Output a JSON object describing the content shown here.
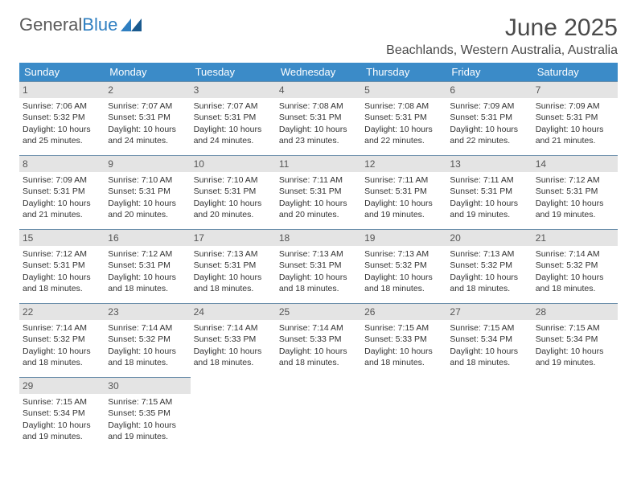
{
  "logo": {
    "text1": "General",
    "text2": "Blue"
  },
  "title": "June 2025",
  "location": "Beachlands, Western Australia, Australia",
  "colors": {
    "header_bg": "#3b8bc8",
    "header_text": "#ffffff",
    "daynum_bg": "#e4e4e4",
    "daynum_border": "#6c8fab",
    "text": "#333333",
    "title_text": "#4a4a4a"
  },
  "weekdays": [
    "Sunday",
    "Monday",
    "Tuesday",
    "Wednesday",
    "Thursday",
    "Friday",
    "Saturday"
  ],
  "days": [
    {
      "n": 1,
      "sunrise": "7:06 AM",
      "sunset": "5:32 PM",
      "dl_h": 10,
      "dl_m": 25
    },
    {
      "n": 2,
      "sunrise": "7:07 AM",
      "sunset": "5:31 PM",
      "dl_h": 10,
      "dl_m": 24
    },
    {
      "n": 3,
      "sunrise": "7:07 AM",
      "sunset": "5:31 PM",
      "dl_h": 10,
      "dl_m": 24
    },
    {
      "n": 4,
      "sunrise": "7:08 AM",
      "sunset": "5:31 PM",
      "dl_h": 10,
      "dl_m": 23
    },
    {
      "n": 5,
      "sunrise": "7:08 AM",
      "sunset": "5:31 PM",
      "dl_h": 10,
      "dl_m": 22
    },
    {
      "n": 6,
      "sunrise": "7:09 AM",
      "sunset": "5:31 PM",
      "dl_h": 10,
      "dl_m": 22
    },
    {
      "n": 7,
      "sunrise": "7:09 AM",
      "sunset": "5:31 PM",
      "dl_h": 10,
      "dl_m": 21
    },
    {
      "n": 8,
      "sunrise": "7:09 AM",
      "sunset": "5:31 PM",
      "dl_h": 10,
      "dl_m": 21
    },
    {
      "n": 9,
      "sunrise": "7:10 AM",
      "sunset": "5:31 PM",
      "dl_h": 10,
      "dl_m": 20
    },
    {
      "n": 10,
      "sunrise": "7:10 AM",
      "sunset": "5:31 PM",
      "dl_h": 10,
      "dl_m": 20
    },
    {
      "n": 11,
      "sunrise": "7:11 AM",
      "sunset": "5:31 PM",
      "dl_h": 10,
      "dl_m": 20
    },
    {
      "n": 12,
      "sunrise": "7:11 AM",
      "sunset": "5:31 PM",
      "dl_h": 10,
      "dl_m": 19
    },
    {
      "n": 13,
      "sunrise": "7:11 AM",
      "sunset": "5:31 PM",
      "dl_h": 10,
      "dl_m": 19
    },
    {
      "n": 14,
      "sunrise": "7:12 AM",
      "sunset": "5:31 PM",
      "dl_h": 10,
      "dl_m": 19
    },
    {
      "n": 15,
      "sunrise": "7:12 AM",
      "sunset": "5:31 PM",
      "dl_h": 10,
      "dl_m": 18
    },
    {
      "n": 16,
      "sunrise": "7:12 AM",
      "sunset": "5:31 PM",
      "dl_h": 10,
      "dl_m": 18
    },
    {
      "n": 17,
      "sunrise": "7:13 AM",
      "sunset": "5:31 PM",
      "dl_h": 10,
      "dl_m": 18
    },
    {
      "n": 18,
      "sunrise": "7:13 AM",
      "sunset": "5:31 PM",
      "dl_h": 10,
      "dl_m": 18
    },
    {
      "n": 19,
      "sunrise": "7:13 AM",
      "sunset": "5:32 PM",
      "dl_h": 10,
      "dl_m": 18
    },
    {
      "n": 20,
      "sunrise": "7:13 AM",
      "sunset": "5:32 PM",
      "dl_h": 10,
      "dl_m": 18
    },
    {
      "n": 21,
      "sunrise": "7:14 AM",
      "sunset": "5:32 PM",
      "dl_h": 10,
      "dl_m": 18
    },
    {
      "n": 22,
      "sunrise": "7:14 AM",
      "sunset": "5:32 PM",
      "dl_h": 10,
      "dl_m": 18
    },
    {
      "n": 23,
      "sunrise": "7:14 AM",
      "sunset": "5:32 PM",
      "dl_h": 10,
      "dl_m": 18
    },
    {
      "n": 24,
      "sunrise": "7:14 AM",
      "sunset": "5:33 PM",
      "dl_h": 10,
      "dl_m": 18
    },
    {
      "n": 25,
      "sunrise": "7:14 AM",
      "sunset": "5:33 PM",
      "dl_h": 10,
      "dl_m": 18
    },
    {
      "n": 26,
      "sunrise": "7:15 AM",
      "sunset": "5:33 PM",
      "dl_h": 10,
      "dl_m": 18
    },
    {
      "n": 27,
      "sunrise": "7:15 AM",
      "sunset": "5:34 PM",
      "dl_h": 10,
      "dl_m": 18
    },
    {
      "n": 28,
      "sunrise": "7:15 AM",
      "sunset": "5:34 PM",
      "dl_h": 10,
      "dl_m": 19
    },
    {
      "n": 29,
      "sunrise": "7:15 AM",
      "sunset": "5:34 PM",
      "dl_h": 10,
      "dl_m": 19
    },
    {
      "n": 30,
      "sunrise": "7:15 AM",
      "sunset": "5:35 PM",
      "dl_h": 10,
      "dl_m": 19
    }
  ],
  "labels": {
    "sunrise": "Sunrise:",
    "sunset": "Sunset:",
    "daylight": "Daylight:",
    "hours": "hours",
    "and": "and",
    "minutes": "minutes."
  },
  "layout": {
    "start_weekday": 0,
    "rows": 5,
    "cols": 7
  }
}
